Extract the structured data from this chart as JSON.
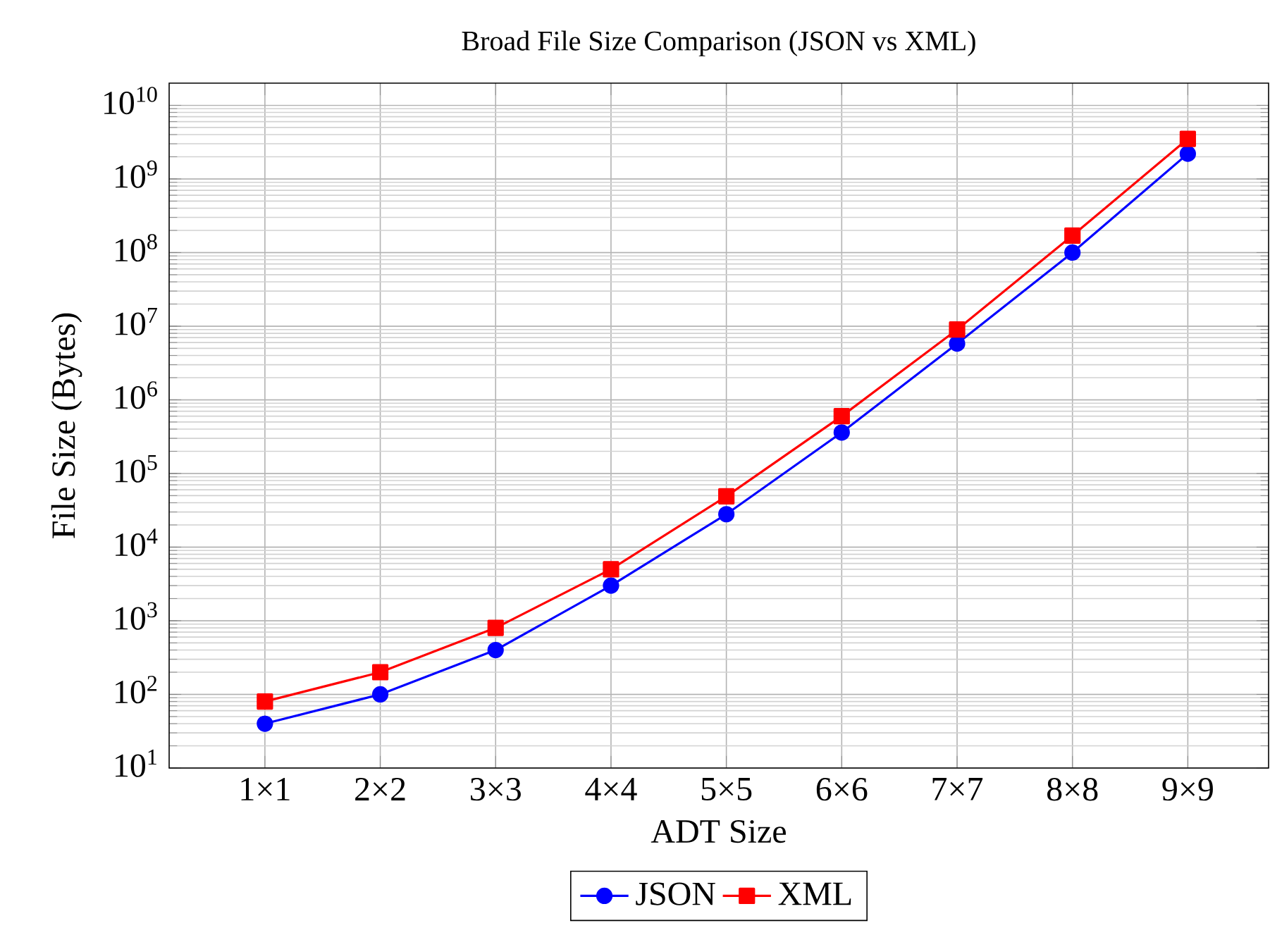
{
  "chart_data": {
    "type": "line",
    "title": "Broad File Size Comparison (JSON vs XML)",
    "xlabel": "ADT Size",
    "ylabel": "File Size (Bytes)",
    "categories": [
      "1×1",
      "2×2",
      "3×3",
      "4×4",
      "5×5",
      "6×6",
      "7×7",
      "8×8",
      "9×9"
    ],
    "series": [
      {
        "name": "JSON",
        "color": "#0000ff",
        "marker": "circle",
        "values": [
          40,
          100,
          400,
          3000,
          28000,
          360000,
          5800000,
          100000000,
          2200000000
        ]
      },
      {
        "name": "XML",
        "color": "#ff0000",
        "marker": "square",
        "values": [
          80,
          200,
          800,
          5000,
          49000,
          600000,
          9000000,
          170000000,
          3500000000
        ]
      }
    ],
    "log": "y",
    "ylim": [
      10,
      20000000000
    ],
    "yticks": [
      {
        "value": 10,
        "label": "10$^{1}$"
      },
      {
        "value": 100,
        "label": "10$^{2}$"
      },
      {
        "value": 1000,
        "label": "10$^{3}$"
      },
      {
        "value": 10000,
        "label": "10$^{4}$"
      },
      {
        "value": 100000,
        "label": "10$^{5}$"
      },
      {
        "value": 1000000,
        "label": "10$^{6}$"
      },
      {
        "value": 10000000,
        "label": "10$^{7}$"
      },
      {
        "value": 100000000,
        "label": "10$^{8}$"
      },
      {
        "value": 1000000000,
        "label": "10$^{9}$"
      },
      {
        "value": 10000000000,
        "label": "10$^{10}$"
      }
    ],
    "grid": true,
    "legend": "bottom",
    "line_style": "solid"
  }
}
